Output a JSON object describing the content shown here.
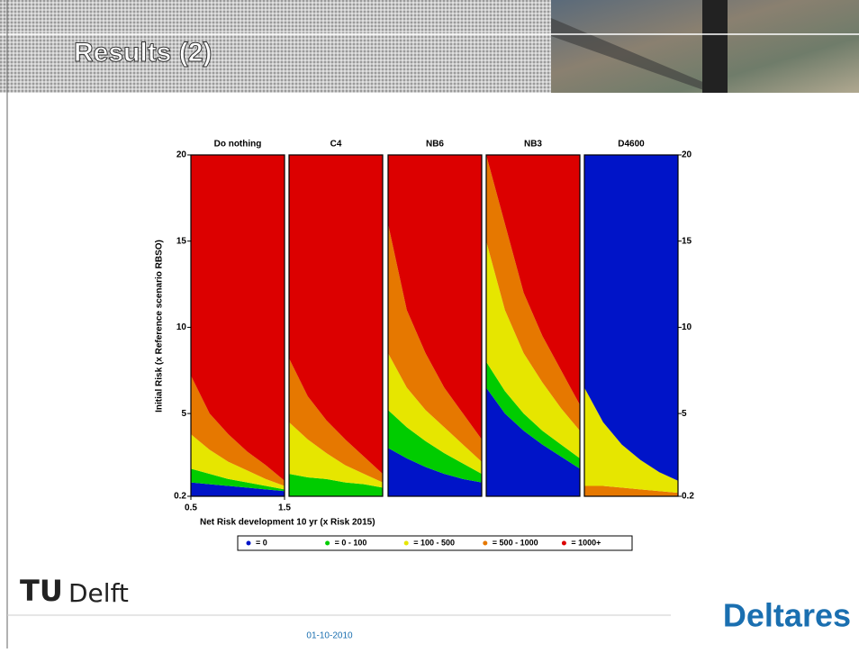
{
  "header": {
    "title": "Results (2)"
  },
  "footer": {
    "date": "01-10-2010",
    "logo_left": "Delft",
    "logo_left_mark": "TU",
    "logo_right": "Deltares"
  },
  "chart_data": {
    "type": "area",
    "y_label": "Initial Risk (x Reference scenario RBSO)",
    "x_label": "Net Risk development 10 yr (x Risk 2015)",
    "x": [
      0.5,
      0.7,
      0.9,
      1.1,
      1.3,
      1.5
    ],
    "xlim": [
      0.5,
      1.5
    ],
    "xticks": [
      0.5,
      1.5
    ],
    "ylim": [
      0.2,
      20
    ],
    "yticks": [
      0.2,
      5,
      10,
      15,
      20
    ],
    "legend": [
      {
        "label": "= 0",
        "color": "#0014c8"
      },
      {
        "label": "= 0 - 100",
        "color": "#00cc00"
      },
      {
        "label": "= 100 - 500",
        "color": "#e6e600"
      },
      {
        "label": "= 500 - 1000",
        "color": "#e67800"
      },
      {
        "label": "= 1000+",
        "color": "#dc0000"
      }
    ],
    "panels": [
      {
        "title": "Do nothing",
        "bands": [
          {
            "color": "#0014c8",
            "values": [
              1.0,
              0.9,
              0.8,
              0.7,
              0.6,
              0.5
            ]
          },
          {
            "color": "#00cc00",
            "values": [
              1.8,
              1.5,
              1.2,
              1.0,
              0.8,
              0.6
            ]
          },
          {
            "color": "#e6e600",
            "values": [
              3.8,
              2.9,
              2.2,
              1.7,
              1.2,
              0.8
            ]
          },
          {
            "color": "#e67800",
            "values": [
              7.2,
              5.0,
              3.8,
              2.8,
              2.0,
              1.1
            ]
          },
          {
            "color": "#dc0000",
            "values": [
              20,
              20,
              20,
              20,
              20,
              20
            ]
          }
        ]
      },
      {
        "title": "C4",
        "bands": [
          {
            "color": "#00cc00",
            "values": [
              1.5,
              1.3,
              1.2,
              1.0,
              0.9,
              0.7
            ]
          },
          {
            "color": "#e6e600",
            "values": [
              4.5,
              3.5,
              2.7,
              2.0,
              1.5,
              1.0
            ]
          },
          {
            "color": "#e67800",
            "values": [
              8.2,
              6.0,
              4.6,
              3.5,
              2.5,
              1.5
            ]
          },
          {
            "color": "#dc0000",
            "values": [
              20,
              20,
              20,
              20,
              20,
              20
            ]
          }
        ]
      },
      {
        "title": "NB6",
        "bands": [
          {
            "color": "#0014c8",
            "values": [
              3.0,
              2.4,
              1.9,
              1.5,
              1.2,
              1.0
            ]
          },
          {
            "color": "#00cc00",
            "values": [
              5.2,
              4.2,
              3.4,
              2.7,
              2.1,
              1.5
            ]
          },
          {
            "color": "#e6e600",
            "values": [
              8.5,
              6.5,
              5.2,
              4.2,
              3.2,
              2.2
            ]
          },
          {
            "color": "#e67800",
            "values": [
              16,
              11,
              8.5,
              6.5,
              5.0,
              3.5
            ]
          },
          {
            "color": "#dc0000",
            "values": [
              20,
              20,
              20,
              20,
              20,
              20
            ]
          }
        ]
      },
      {
        "title": "NB3",
        "bands": [
          {
            "color": "#0014c8",
            "values": [
              6.5,
              5.0,
              4.0,
              3.2,
              2.5,
              1.8
            ]
          },
          {
            "color": "#00cc00",
            "values": [
              8.0,
              6.3,
              5.0,
              4.0,
              3.2,
              2.4
            ]
          },
          {
            "color": "#e6e600",
            "values": [
              15,
              11,
              8.5,
              6.8,
              5.3,
              4.0
            ]
          },
          {
            "color": "#e67800",
            "values": [
              20,
              16,
              12,
              9.5,
              7.5,
              5.5
            ]
          },
          {
            "color": "#dc0000",
            "values": [
              20,
              20,
              20,
              20,
              20,
              20
            ]
          }
        ]
      },
      {
        "title": "D4600",
        "bands": [
          {
            "color": "#e67800",
            "values": [
              0.8,
              0.8,
              0.7,
              0.6,
              0.5,
              0.4
            ]
          },
          {
            "color": "#e6e600",
            "values": [
              6.5,
              4.5,
              3.2,
              2.3,
              1.6,
              1.1
            ]
          },
          {
            "color": "#0014c8",
            "values": [
              20,
              20,
              20,
              20,
              20,
              20
            ]
          }
        ]
      }
    ]
  }
}
